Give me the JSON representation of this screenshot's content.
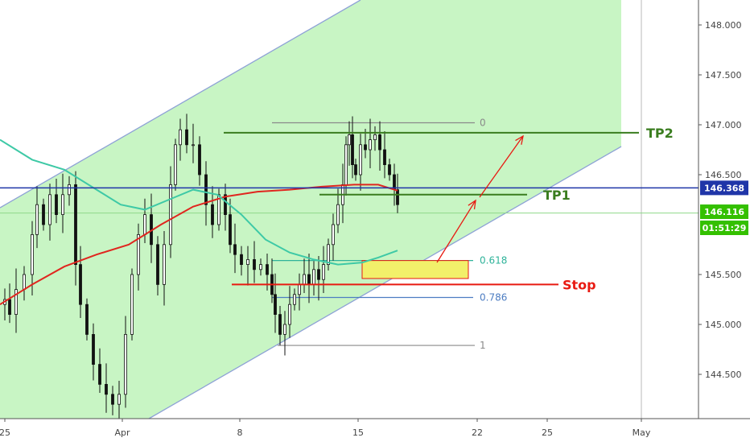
{
  "chart_data": {
    "type": "candlestick",
    "title": "",
    "xlabel": "",
    "ylabel": "",
    "ylim": [
      144.05,
      148.25
    ],
    "x_ticks": [
      "25",
      "Apr",
      "8",
      "15",
      "22",
      "25",
      "May"
    ],
    "y_ticks": [
      "148.000",
      "147.500",
      "147.000",
      "146.500",
      "145.500",
      "145.000",
      "144.500"
    ],
    "price_labels": {
      "current_price": "146.368",
      "reference_price": "146.116",
      "countdown": "01:51:29"
    },
    "levels": [
      {
        "name": "TP2",
        "value": 146.92
      },
      {
        "name": "TP1",
        "value": 146.3
      },
      {
        "name": "Stop",
        "value": 145.4
      }
    ],
    "fib_levels": [
      {
        "label": "0",
        "value": 147.02
      },
      {
        "label": "0.618",
        "value": 145.64
      },
      {
        "label": "0.786",
        "value": 145.27
      },
      {
        "label": "1",
        "value": 144.79
      }
    ],
    "horizontal_lines": [
      146.368,
      146.116
    ],
    "entry_zone": [
      145.46,
      145.64
    ],
    "colors": {
      "channel_fill": "#c8f5c4",
      "channel_line": "#8ea2d6",
      "candle": "#111111",
      "ma_slow": "#e0261f",
      "ma_fast": "#3ec9a6",
      "current_line": "#1f35a8",
      "target": "#3a7d1f",
      "stop": "#e81a12",
      "entry_zone": "#f2f06a",
      "fib_618": "#2fb39a",
      "fib_786": "#4d7dc2",
      "fib_neutral": "#8a8a8a",
      "price_tag_blue": "#1f35a8",
      "price_tag_green": "#34c000"
    }
  }
}
